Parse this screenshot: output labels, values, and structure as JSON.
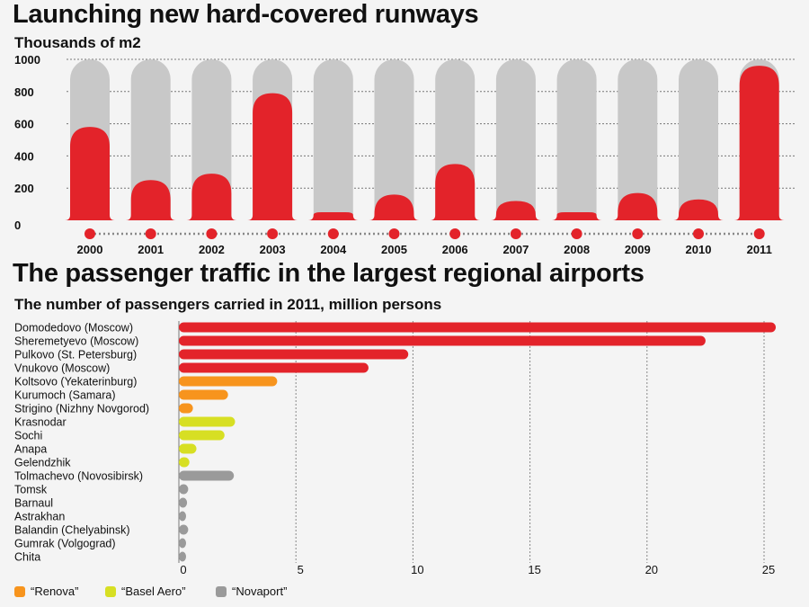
{
  "chart_data": [
    {
      "type": "bar",
      "title": "Launching new hard-covered runways",
      "ylabel": "Thousands of m2",
      "ylim": [
        0,
        1000
      ],
      "yticks": [
        0,
        200,
        400,
        600,
        800,
        1000
      ],
      "categories": [
        "2000",
        "2001",
        "2002",
        "2003",
        "2004",
        "2005",
        "2006",
        "2007",
        "2008",
        "2009",
        "2010",
        "2011"
      ],
      "values": [
        580,
        250,
        290,
        790,
        50,
        160,
        350,
        120,
        50,
        170,
        130,
        960
      ],
      "colors": {
        "bar": "#e3232a",
        "background_bar": "#c8c8c8"
      },
      "grid": true
    },
    {
      "type": "bar",
      "orientation": "horizontal",
      "title": "The passenger traffic in the largest regional airports",
      "subtitle": "The number of passengers carried in 2011, million persons",
      "xlim": [
        0,
        25
      ],
      "xticks": [
        0,
        5,
        10,
        15,
        20,
        25
      ],
      "categories": [
        "Domodedovo (Moscow)",
        "Sheremetyevo (Moscow)",
        "Pulkovo (St. Petersburg)",
        "Vnukovo (Moscow)",
        "Koltsovo (Yekaterinburg)",
        "Kurumoch (Samara)",
        "Strigino (Nizhny Novgorod)",
        "Krasnodar",
        "Sochi",
        "Anapa",
        "Gelendzhik",
        "Tolmachevo (Novosibirsk)",
        "Tomsk",
        "Barnaul",
        "Astrakhan",
        "Balandin (Chelyabinsk)",
        "Gumrak (Volgograd)",
        "Chita"
      ],
      "values": [
        25.5,
        22.5,
        9.8,
        8.1,
        4.2,
        2.1,
        0.6,
        2.4,
        1.95,
        0.75,
        0.45,
        2.35,
        0.4,
        0.35,
        0.3,
        0.4,
        0.3,
        0.2
      ],
      "groups": [
        "none",
        "none",
        "none",
        "none",
        "renova",
        "renova",
        "renova",
        "basel",
        "basel",
        "basel",
        "basel",
        "novaport",
        "novaport",
        "novaport",
        "novaport",
        "novaport",
        "novaport",
        "novaport"
      ],
      "group_colors": {
        "none": "#e3232a",
        "renova": "#f7941d",
        "basel": "#d7df23",
        "novaport": "#9a9a9a"
      },
      "legend": [
        {
          "label": "“Renova”",
          "group": "renova"
        },
        {
          "label": "“Basel Aero”",
          "group": "basel"
        },
        {
          "label": "“Novaport”",
          "group": "novaport"
        }
      ],
      "legend_position": "bottom-left",
      "grid": true
    }
  ]
}
